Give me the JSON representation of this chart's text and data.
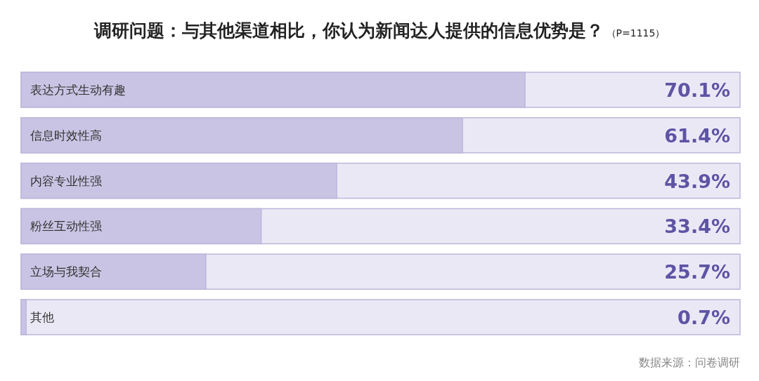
{
  "chart_data": {
    "type": "bar",
    "orientation": "horizontal",
    "title": "调研问题：与其他渠道相比，你认为新闻达人提供的信息优势是？",
    "subtitle": "（P=1115）",
    "categories": [
      "表达方式生动有趣",
      "信息时效性高",
      "内容专业性强",
      "粉丝互动性强",
      "立场与我契合",
      "其他"
    ],
    "values": [
      70.1,
      61.4,
      43.9,
      33.4,
      25.7,
      0.7
    ],
    "value_labels": [
      "70.1%",
      "61.4%",
      "43.9%",
      "33.4%",
      "25.7%",
      "0.7%"
    ],
    "color": "#cac4e4",
    "xlim": [
      0,
      100
    ],
    "annotations": [
      "数据来源：问卷调研"
    ]
  }
}
